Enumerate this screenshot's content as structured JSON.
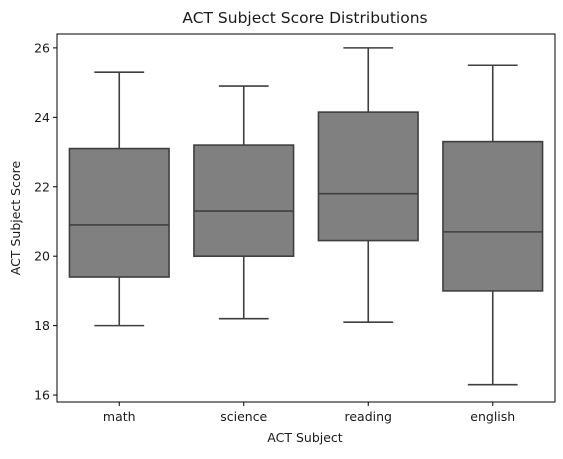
{
  "chart_data": {
    "type": "box",
    "title": "ACT Subject Score Distributions",
    "xlabel": "ACT Subject",
    "ylabel": "ACT Subject Score",
    "ylim": [
      15.8,
      26.4
    ],
    "yticks": [
      16,
      18,
      20,
      22,
      24,
      26
    ],
    "grid": false,
    "categories": [
      "math",
      "science",
      "reading",
      "english"
    ],
    "series": [
      {
        "name": "math",
        "whisker_low": 18.0,
        "q1": 19.4,
        "median": 20.9,
        "q3": 23.1,
        "whisker_high": 25.3
      },
      {
        "name": "science",
        "whisker_low": 18.2,
        "q1": 20.0,
        "median": 21.3,
        "q3": 23.2,
        "whisker_high": 24.9
      },
      {
        "name": "reading",
        "whisker_low": 18.1,
        "q1": 20.45,
        "median": 21.8,
        "q3": 24.15,
        "whisker_high": 26.0
      },
      {
        "name": "english",
        "whisker_low": 16.3,
        "q1": 19.0,
        "median": 20.7,
        "q3": 23.3,
        "whisker_high": 25.5
      }
    ],
    "colors": {
      "box_fill": "#808080",
      "line": "#3f3f3f",
      "axis": "#000000"
    }
  }
}
